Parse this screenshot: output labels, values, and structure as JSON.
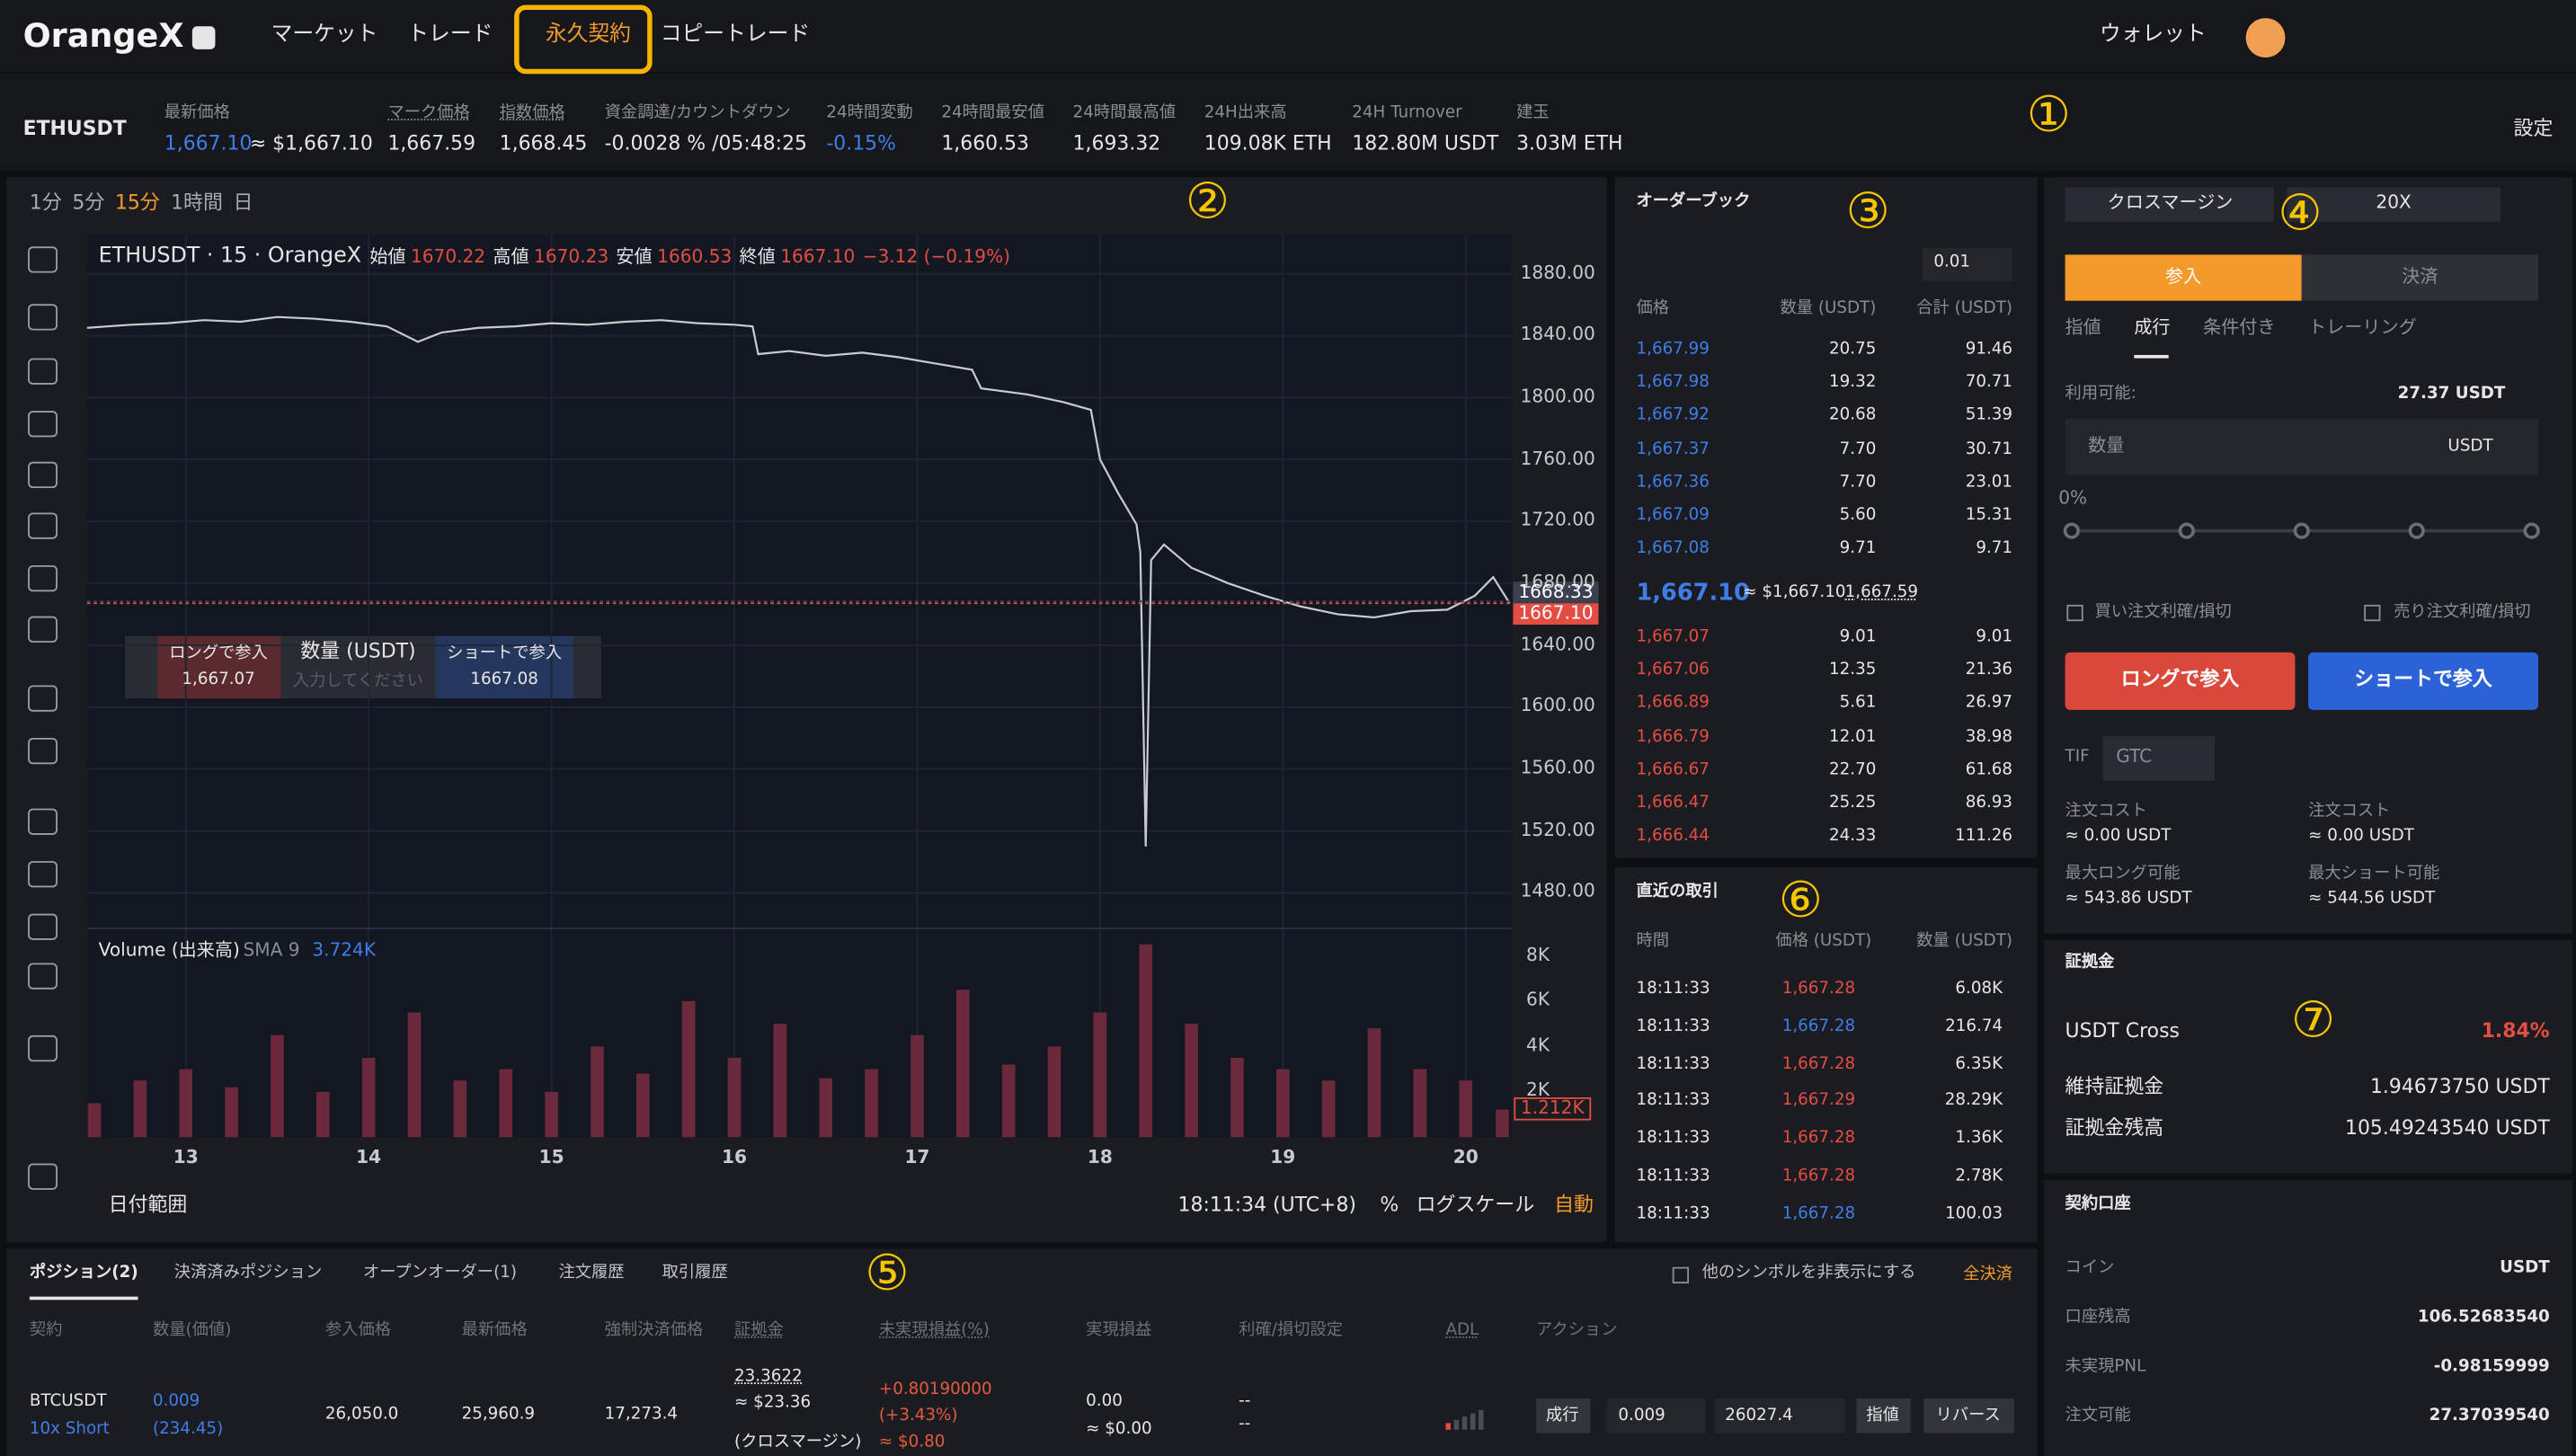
{
  "header": {
    "logo": "OrangeX",
    "nav": [
      "マーケット",
      "トレード",
      "永久契約",
      "コピートレード"
    ],
    "wallet": "ウォレット"
  },
  "annotations": [
    "①",
    "②",
    "③",
    "④",
    "⑤",
    "⑥",
    "⑦"
  ],
  "ticker": {
    "symbol": "ETHUSDT",
    "settings": "設定",
    "stats": [
      {
        "label": "最新価格",
        "value": "1,667.10",
        "sub": "≈ $1,667.10",
        "color": "#3f7ee8"
      },
      {
        "label": "マーク価格",
        "value": "1,667.59"
      },
      {
        "label": "指数価格",
        "value": "1,668.45"
      },
      {
        "label": "資金調達/カウントダウン",
        "value": "-0.0028 % /05:48:25"
      },
      {
        "label": "24時間変動",
        "value": "-0.15%",
        "color": "#3f7ee8"
      },
      {
        "label": "24時間最安値",
        "value": "1,660.53"
      },
      {
        "label": "24時間最高値",
        "value": "1,693.32"
      },
      {
        "label": "24H出来高",
        "value": "109.08K ETH"
      },
      {
        "label": "24H Turnover",
        "value": "182.80M USDT"
      },
      {
        "label": "建玉",
        "value": "3.03M ETH"
      }
    ]
  },
  "toolbar": {
    "intervals": [
      "1分",
      "5分",
      "15分",
      "1時間",
      "日"
    ]
  },
  "chart_data": [
    {
      "type": "line",
      "title": "ETHUSDT · 15 · OrangeX",
      "color": "#c9cbd1",
      "grid": true,
      "legend": [
        {
          "label": "始値",
          "value": "1670.22"
        },
        {
          "label": "高値",
          "value": "1670.23"
        },
        {
          "label": "安値",
          "value": "1660.53"
        },
        {
          "label": "終値",
          "value": "1667.10"
        }
      ],
      "change": "−3.12 (−0.19%)",
      "x": [
        12.46,
        12.7,
        12.9,
        13.1,
        13.3,
        13.5,
        13.7,
        13.9,
        14.1,
        14.27,
        14.4,
        14.6,
        14.8,
        15.0,
        15.2,
        15.4,
        15.6,
        15.8,
        16.0,
        16.1,
        16.13,
        16.3,
        16.5,
        16.7,
        16.9,
        17.1,
        17.3,
        17.35,
        17.6,
        17.8,
        17.95,
        18.0,
        18.1,
        18.2,
        18.22,
        18.25,
        18.28,
        18.35,
        18.5,
        18.7,
        18.9,
        19.1,
        19.3,
        19.5,
        19.7,
        19.9,
        20.05,
        20.15,
        20.24
      ],
      "values": [
        1845,
        1847,
        1848,
        1850,
        1849,
        1852,
        1851,
        1849,
        1846,
        1836,
        1842,
        1845,
        1846,
        1848,
        1847,
        1849,
        1850,
        1848,
        1847,
        1846,
        1828,
        1830,
        1827,
        1829,
        1826,
        1822,
        1818,
        1806,
        1802,
        1797,
        1792,
        1760,
        1738,
        1718,
        1700,
        1510,
        1695,
        1705,
        1690,
        1680,
        1672,
        1665,
        1660,
        1658,
        1662,
        1663,
        1672,
        1684,
        1667.1
      ],
      "xlim": [
        12.46,
        20.25
      ],
      "xticks": [
        13,
        14,
        15,
        16,
        17,
        18,
        19,
        20
      ],
      "ylim": [
        1457,
        1905
      ],
      "yticks": [
        {
          "value": 1880,
          "label": "1880.00"
        },
        {
          "value": 1840,
          "label": "1840.00"
        },
        {
          "value": 1800,
          "label": "1800.00"
        },
        {
          "value": 1760,
          "label": "1760.00"
        },
        {
          "value": 1720,
          "label": "1720.00"
        },
        {
          "value": 1680,
          "label": "1680.00"
        },
        {
          "value": 1640,
          "label": "1640.00"
        },
        {
          "value": 1600,
          "label": "1600.00"
        },
        {
          "value": 1560,
          "label": "1560.00"
        },
        {
          "value": 1520,
          "label": "1520.00"
        },
        {
          "value": 1480,
          "label": "1480.00"
        }
      ],
      "markers": [
        {
          "value": 1668.33,
          "label": "1668.33",
          "color": "#3b4150"
        },
        {
          "value": 1667.1,
          "label": "1667.10",
          "color": "#e34d43"
        }
      ]
    },
    {
      "type": "bar",
      "title": "Volume (出来高)",
      "indicator": "SMA 9",
      "indicator_value": "3.724K",
      "color": "#6b2a3b",
      "x": [
        12.5,
        12.75,
        13,
        13.25,
        13.5,
        13.75,
        14,
        14.25,
        14.5,
        14.75,
        15,
        15.25,
        15.5,
        15.75,
        16,
        16.25,
        16.5,
        16.75,
        17,
        17.25,
        17.5,
        17.75,
        18,
        18.25,
        18.5,
        18.75,
        19,
        19.25,
        19.5,
        19.75,
        20,
        20.2
      ],
      "values": [
        1500,
        2500,
        3000,
        2200,
        4500,
        2000,
        3500,
        5500,
        2500,
        3000,
        2000,
        4000,
        2800,
        6000,
        3500,
        5000,
        2600,
        3000,
        4500,
        6500,
        3200,
        4000,
        5500,
        8500,
        5000,
        3500,
        3000,
        2500,
        4800,
        3000,
        2500,
        1212
      ],
      "value_labels": [
        null,
        null,
        null,
        null,
        null,
        null,
        null,
        null,
        null,
        null,
        null,
        null,
        null,
        null,
        null,
        null,
        null,
        null,
        null,
        null,
        null,
        null,
        null,
        null,
        null,
        null,
        null,
        null,
        null,
        null,
        null,
        "1.212K"
      ],
      "xlim": [
        12.46,
        20.25
      ],
      "ylim": [
        0,
        9200
      ],
      "yticks": [
        {
          "value": 8000,
          "label": "8K"
        },
        {
          "value": 6000,
          "label": "6K"
        },
        {
          "value": 4000,
          "label": "4K"
        },
        {
          "value": 2000,
          "label": "2K"
        }
      ]
    }
  ],
  "chart_footer": {
    "date_range": "日付範囲",
    "time": "18:11:34 (UTC+8)",
    "percent": "%",
    "log": "ログスケール",
    "auto": "自動"
  },
  "quick_order": {
    "long": "ロングで参入",
    "long_price": "1,667.07",
    "qty": "数量 (USDT)",
    "placeholder": "入力してください",
    "short": "ショートで参入",
    "short_price": "1667.08"
  },
  "orderbook": {
    "title": "オーダーブック",
    "step": "0.01",
    "headers": [
      "価格",
      "数量 (USDT)",
      "合計 (USDT)"
    ],
    "asks_color": "#3f7ee8",
    "bids_color": "#e34d43",
    "asks": [
      {
        "price": "1,667.99",
        "qty": "20.75",
        "total": "91.46"
      },
      {
        "price": "1,667.98",
        "qty": "19.32",
        "total": "70.71"
      },
      {
        "price": "1,667.92",
        "qty": "20.68",
        "total": "51.39"
      },
      {
        "price": "1,667.37",
        "qty": "7.70",
        "total": "30.71"
      },
      {
        "price": "1,667.36",
        "qty": "7.70",
        "total": "23.01"
      },
      {
        "price": "1,667.09",
        "qty": "5.60",
        "total": "15.31"
      },
      {
        "price": "1,667.08",
        "qty": "9.71",
        "total": "9.71"
      }
    ],
    "last": "1,667.10",
    "last_usd": "≈ $1,667.10",
    "mark": "1,667.59",
    "bids": [
      {
        "price": "1,667.07",
        "qty": "9.01",
        "total": "9.01"
      },
      {
        "price": "1,667.06",
        "qty": "12.35",
        "total": "21.36"
      },
      {
        "price": "1,666.89",
        "qty": "5.61",
        "total": "26.97"
      },
      {
        "price": "1,666.79",
        "qty": "12.01",
        "total": "38.98"
      },
      {
        "price": "1,666.67",
        "qty": "22.70",
        "total": "61.68"
      },
      {
        "price": "1,666.47",
        "qty": "25.25",
        "total": "86.93"
      },
      {
        "price": "1,666.44",
        "qty": "24.33",
        "total": "111.26"
      }
    ]
  },
  "trades": {
    "title": "直近の取引",
    "headers": [
      "時間",
      "価格 (USDT)",
      "数量 (USDT)"
    ],
    "rows": [
      {
        "time": "18:11:33",
        "price": "1,667.28",
        "qty": "6.08K",
        "color": "#e34d43"
      },
      {
        "time": "18:11:33",
        "price": "1,667.28",
        "qty": "216.74",
        "color": "#3f7ee8"
      },
      {
        "time": "18:11:33",
        "price": "1,667.28",
        "qty": "6.35K",
        "color": "#e34d43"
      },
      {
        "time": "18:11:33",
        "price": "1,667.29",
        "qty": "28.29K",
        "color": "#e34d43"
      },
      {
        "time": "18:11:33",
        "price": "1,667.28",
        "qty": "1.36K",
        "color": "#e34d43"
      },
      {
        "time": "18:11:33",
        "price": "1,667.28",
        "qty": "2.78K",
        "color": "#e34d43"
      },
      {
        "time": "18:11:33",
        "price": "1,667.28",
        "qty": "100.03",
        "color": "#3f7ee8"
      }
    ]
  },
  "order_panel": {
    "margin_mode": "クロスマージン",
    "leverage": "20X",
    "tabs": [
      "参入",
      "決済"
    ],
    "order_types": [
      "指値",
      "成行",
      "条件付き",
      "トレーリング"
    ],
    "available_label": "利用可能:",
    "available": "27.37 USDT",
    "qty": "数量",
    "unit": "USDT",
    "pct": "0%",
    "tp_buy": "買い注文利確/損切",
    "tp_sell": "売り注文利確/損切",
    "long": "ロングで参入",
    "short": "ショートで参入",
    "tif": "TIF",
    "tif_value": "GTC",
    "costs": [
      {
        "label": "注文コスト",
        "value": "≈ 0.00 USDT"
      },
      {
        "label": "注文コスト",
        "value": "≈ 0.00 USDT"
      },
      {
        "label": "最大ロング可能",
        "value": "≈ 543.86 USDT"
      },
      {
        "label": "最大ショート可能",
        "value": "≈ 544.56 USDT"
      }
    ]
  },
  "margin": {
    "title": "証拠金",
    "mode": "USDT Cross",
    "ratio": "1.84%",
    "rows": [
      {
        "label": "維持証拠金",
        "value": "1.94673750 USDT"
      },
      {
        "label": "証拠金残高",
        "value": "105.49243540 USDT"
      }
    ]
  },
  "account": {
    "title": "契約口座",
    "rows": [
      {
        "label": "コイン",
        "value": "USDT"
      },
      {
        "label": "口座残高",
        "value": "106.52683540"
      },
      {
        "label": "未実現PNL",
        "value": "-0.98159999"
      },
      {
        "label": "注文可能",
        "value": "27.37039540"
      }
    ]
  },
  "positions": {
    "tabs": [
      "ポジション(2)",
      "決済済みポジション",
      "オープンオーダー(1)",
      "注文履歴",
      "取引履歴"
    ],
    "hide_others": "他のシンボルを非表示にする",
    "close_all": "全決済",
    "headers": [
      "契約",
      "数量(価値)",
      "参入価格",
      "最新価格",
      "強制決済価格",
      "証拠金",
      "未実現損益(%)",
      "実現損益",
      "利確/損切設定",
      "ADL",
      "アクション"
    ],
    "rows": [
      {
        "symbol": "BTCUSDT",
        "side": "10x Short",
        "qty": "0.009",
        "value": "(234.45)",
        "entry": "26,050.0",
        "last": "25,960.9",
        "liq": "17,273.4",
        "margin": "23.3622",
        "margin_usd": "≈ $23.36",
        "margin_mode": "(クロスマージン)",
        "upnl": "+0.80190000",
        "upnl_pct": "(+3.43%)",
        "upnl_usd": "≈ $0.80",
        "realized": "0.00",
        "realized_usd": "≈ $0.00",
        "tp": "--",
        "sl": "--",
        "market": "成行",
        "qty_input": "0.009",
        "price_input": "26027.4",
        "limit": "指値",
        "reverse": "リバース"
      }
    ]
  }
}
